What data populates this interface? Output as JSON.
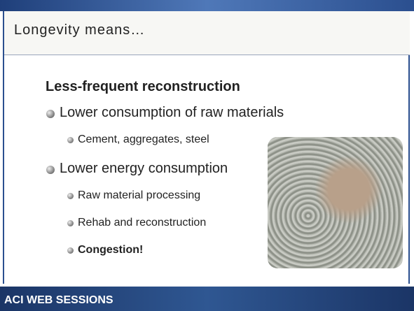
{
  "header": {
    "title": "Longevity means…"
  },
  "content": {
    "heading": "Less-frequent reconstruction",
    "bullets": [
      {
        "text": "Lower consumption of raw materials",
        "sub": [
          {
            "text": "Cement, aggregates, steel",
            "bold": false
          }
        ]
      },
      {
        "text": "Lower energy consumption",
        "sub": [
          {
            "text": "Raw material processing",
            "bold": false
          },
          {
            "text": "Rehab and reconstruction",
            "bold": false
          },
          {
            "text": "Congestion!",
            "bold": true
          }
        ]
      }
    ]
  },
  "footer": {
    "brand": "ACI WEB SESSIONS"
  }
}
